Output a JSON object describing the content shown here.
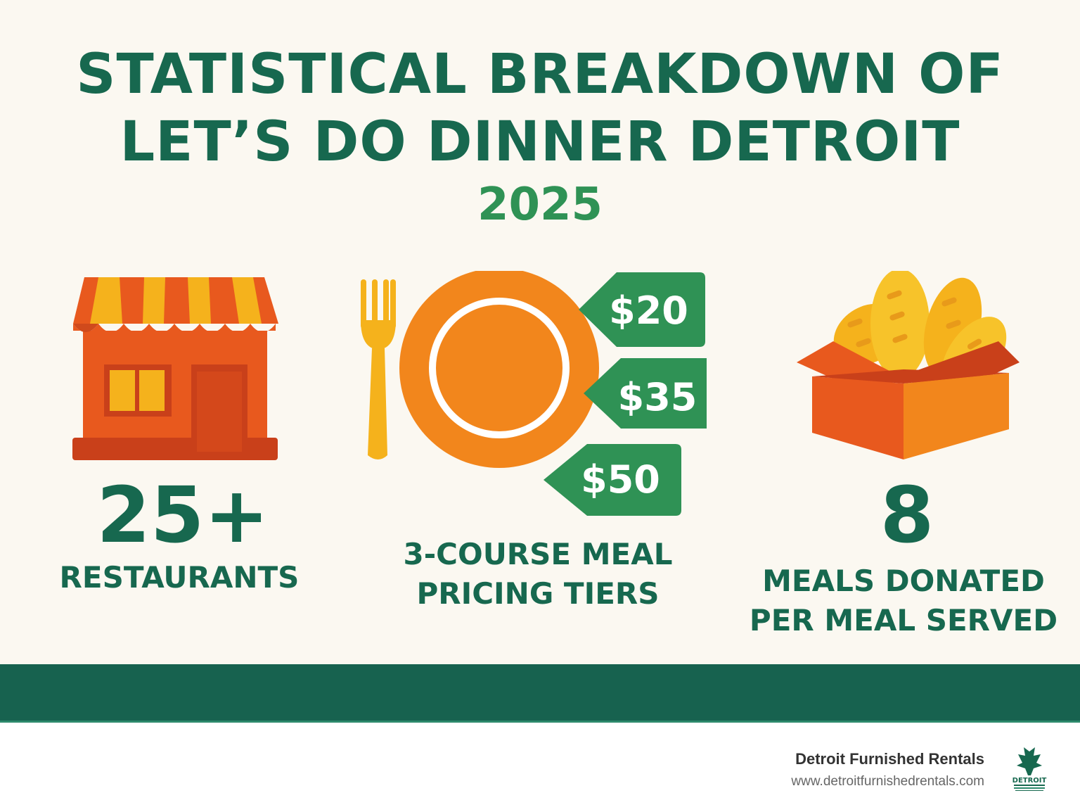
{
  "title": {
    "line1": "STATISTICAL BREAKDOWN OF",
    "line2": "LET’S DO DINNER DETROIT"
  },
  "year": "2025",
  "stats": {
    "restaurants": {
      "number": "25+",
      "label": "RESTAURANTS",
      "icon": "storefront-icon"
    },
    "pricing": {
      "tiers": [
        "$20",
        "$35",
        "$50"
      ],
      "label_line1": "3-COURSE MEAL",
      "label_line2": "PRICING TIERS",
      "icon": "plate-and-fork-icon"
    },
    "donations": {
      "number": "8",
      "label_line1": "MEALS DONATED",
      "label_line2": "PER MEAL SERVED",
      "icon": "bread-box-icon"
    }
  },
  "footer": {
    "brand": "Detroit Furnished Rentals",
    "url": "www.detroitfurnishedrentals.com",
    "logo_text": "DETROIT"
  },
  "colors": {
    "primary_green": "#17684f",
    "accent_green": "#2f9255",
    "orange": "#e8591e",
    "yellow": "#f5b21c",
    "background": "#fbf8f1"
  }
}
